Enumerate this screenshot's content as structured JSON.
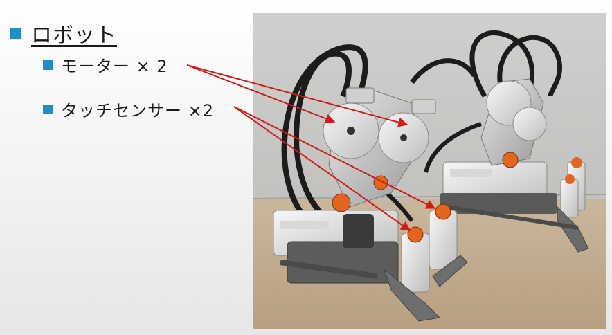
{
  "slide": {
    "heading": "ロボット",
    "bullets": [
      {
        "label": "モーター × 2"
      },
      {
        "label": "タッチセンサー ×2"
      }
    ]
  },
  "photo": {
    "subject": "two robots built from Lego Mindstorms NXT bricks with motors and touch sensors"
  },
  "colors": {
    "bullet": "#1f8fc9",
    "arrow": "#d11a1a"
  }
}
